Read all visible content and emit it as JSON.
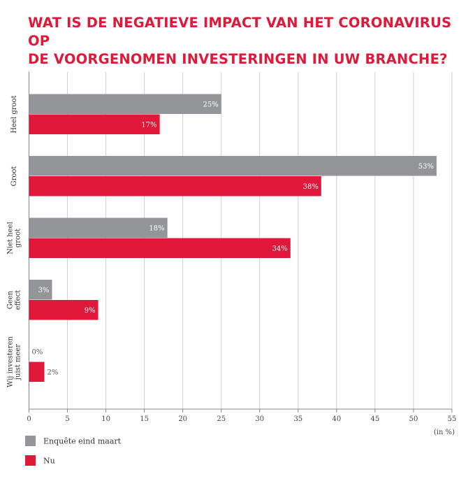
{
  "title_lines": [
    "WAT IS DE NEGATIEVE IMPACT VAN HET CORONAVIRUS OP",
    "DE VOORGENOMEN INVESTERINGEN IN UW BRANCHE?"
  ],
  "colors": {
    "title": "#e0193b",
    "series1": "#939598",
    "series2": "#e0193b",
    "grid": "#cfcfcf"
  },
  "chart_data": {
    "type": "bar",
    "orientation": "horizontal",
    "categories": [
      [
        "Heel groot"
      ],
      [
        "Groot"
      ],
      [
        "Niet heel",
        "groot"
      ],
      [
        "Geen",
        "effect"
      ],
      [
        "Wij investeren",
        "juist meer"
      ]
    ],
    "series": [
      {
        "name": "Enquête eind maart",
        "values": [
          25,
          53,
          18,
          3,
          0
        ],
        "labels": [
          "25%",
          "53%",
          "18%",
          "3%",
          "0%"
        ]
      },
      {
        "name": "Nu",
        "values": [
          17,
          38,
          34,
          9,
          2
        ],
        "labels": [
          "17%",
          "38%",
          "34%",
          "9%",
          "2%"
        ]
      }
    ],
    "xlim": [
      0,
      55
    ],
    "xticks": [
      0,
      5,
      10,
      15,
      20,
      25,
      30,
      35,
      40,
      45,
      50,
      55
    ],
    "xlabel": "(in %)",
    "grid": true,
    "legend_position": "bottom-left"
  }
}
